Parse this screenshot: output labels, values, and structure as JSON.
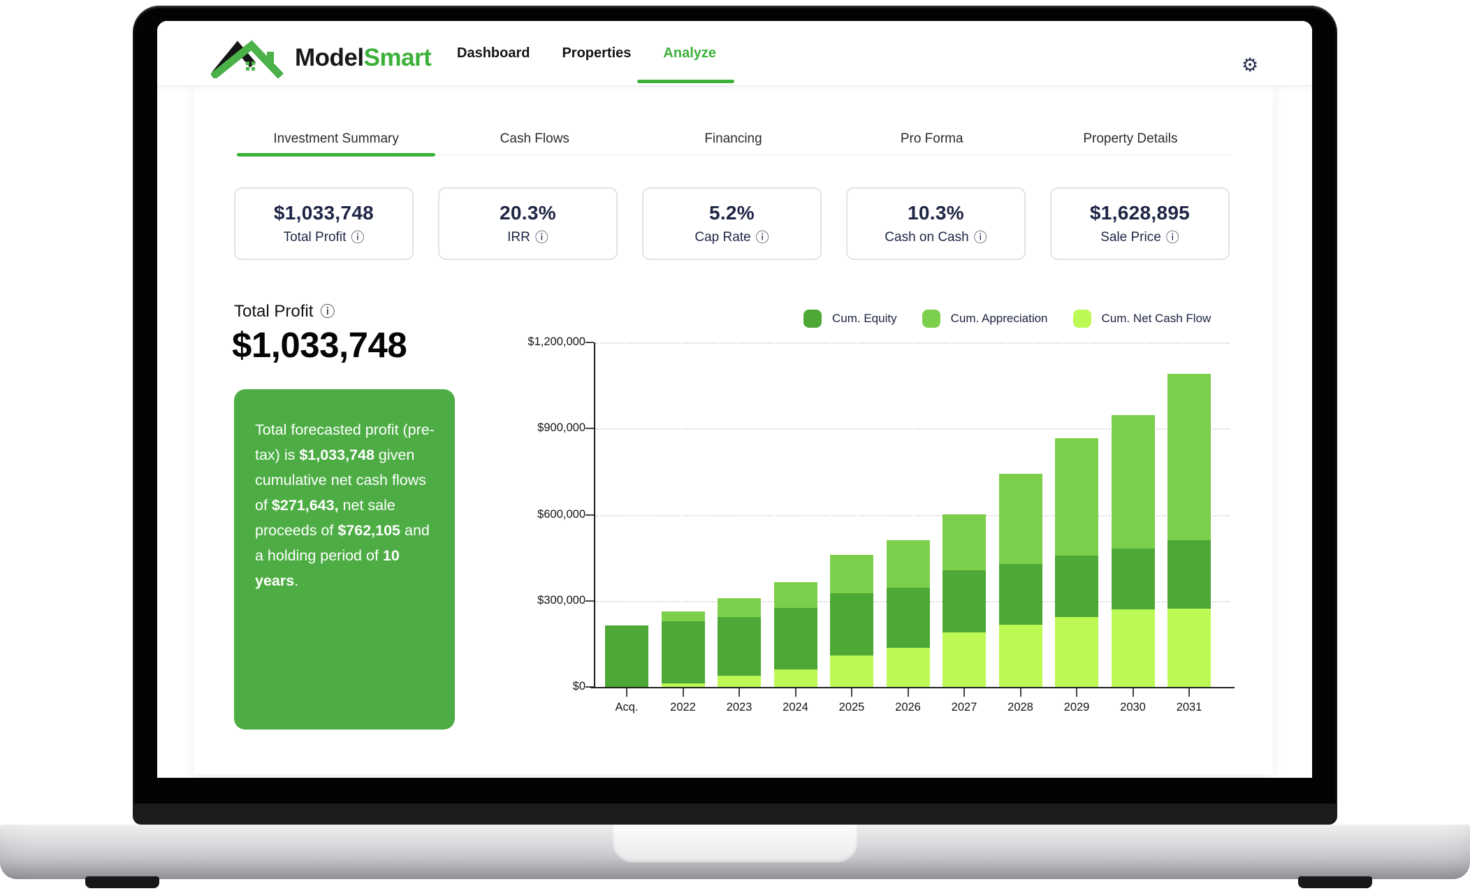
{
  "colors": {
    "accent": "#3cb13a",
    "box_green": "#4dad44",
    "navy_text": "#1e2545",
    "logo_dark": "#181818"
  },
  "icons": {
    "gear": "⚙",
    "info": "ⓘ"
  },
  "header": {
    "logo": {
      "part1": "Model",
      "part2": "Smart"
    },
    "nav": [
      {
        "label": "Dashboard",
        "active": false
      },
      {
        "label": "Properties",
        "active": false
      },
      {
        "label": "Analyze",
        "active": true
      }
    ]
  },
  "tabs": [
    {
      "label": "Investment Summary",
      "active": true
    },
    {
      "label": "Cash Flows",
      "active": false
    },
    {
      "label": "Financing",
      "active": false
    },
    {
      "label": "Pro Forma",
      "active": false
    },
    {
      "label": "Property Details",
      "active": false
    }
  ],
  "kpis": [
    {
      "value": "$1,033,748",
      "label": "Total Profit"
    },
    {
      "value": "20.3%",
      "label": "IRR"
    },
    {
      "value": "5.2%",
      "label": "Cap Rate"
    },
    {
      "value": "10.3%",
      "label": "Cash on Cash"
    },
    {
      "value": "$1,628,895",
      "label": "Sale Price"
    }
  ],
  "profit_section": {
    "heading": "Total Profit",
    "amount": "$1,033,748",
    "callout_runs": [
      {
        "text": "Total forecasted profit (pre-tax) is "
      },
      {
        "text": "$1,033,748",
        "bold": true
      },
      {
        "text": " given cumulative net cash flows of "
      },
      {
        "text": "$271,643,",
        "bold": true
      },
      {
        "text": " net sale proceeds of "
      },
      {
        "text": "$762,105",
        "bold": true
      },
      {
        "text": " and a holding period of "
      },
      {
        "text": "10 years",
        "bold": true
      },
      {
        "text": "."
      }
    ]
  },
  "chart_data": {
    "type": "bar",
    "stacked": true,
    "legend_position": "top-right",
    "grid": "horizontal-dotted",
    "categories": [
      "Acq.",
      "2022",
      "2023",
      "2024",
      "2025",
      "2026",
      "2027",
      "2028",
      "2029",
      "2030",
      "2031"
    ],
    "series": [
      {
        "name": "Cum. Equity",
        "color": "#4da836",
        "values": [
          215000,
          216000,
          204000,
          212000,
          215000,
          210000,
          215000,
          212000,
          213000,
          213000,
          238000
        ]
      },
      {
        "name": "Cum. Appreciation",
        "color": "#7ccf4b",
        "values": [
          0,
          34000,
          66000,
          91000,
          135000,
          166000,
          195000,
          314000,
          409000,
          464000,
          580000
        ]
      },
      {
        "name": "Cum. Net Cash Flow",
        "color": "#bdf955",
        "values": [
          0,
          12000,
          40000,
          62000,
          110000,
          136000,
          191000,
          217000,
          244000,
          269000,
          272000
        ]
      }
    ],
    "stack_order": [
      "Cum. Net Cash Flow",
      "Cum. Equity",
      "Cum. Appreciation"
    ],
    "ylim": [
      0,
      1200000
    ],
    "yticks": [
      {
        "value": 0,
        "label": "$0"
      },
      {
        "value": 300000,
        "label": "$300,000"
      },
      {
        "value": 600000,
        "label": "$600,000"
      },
      {
        "value": 900000,
        "label": "$900,000"
      },
      {
        "value": 1200000,
        "label": "$1,200,000"
      }
    ],
    "xlabel": "",
    "ylabel": ""
  }
}
